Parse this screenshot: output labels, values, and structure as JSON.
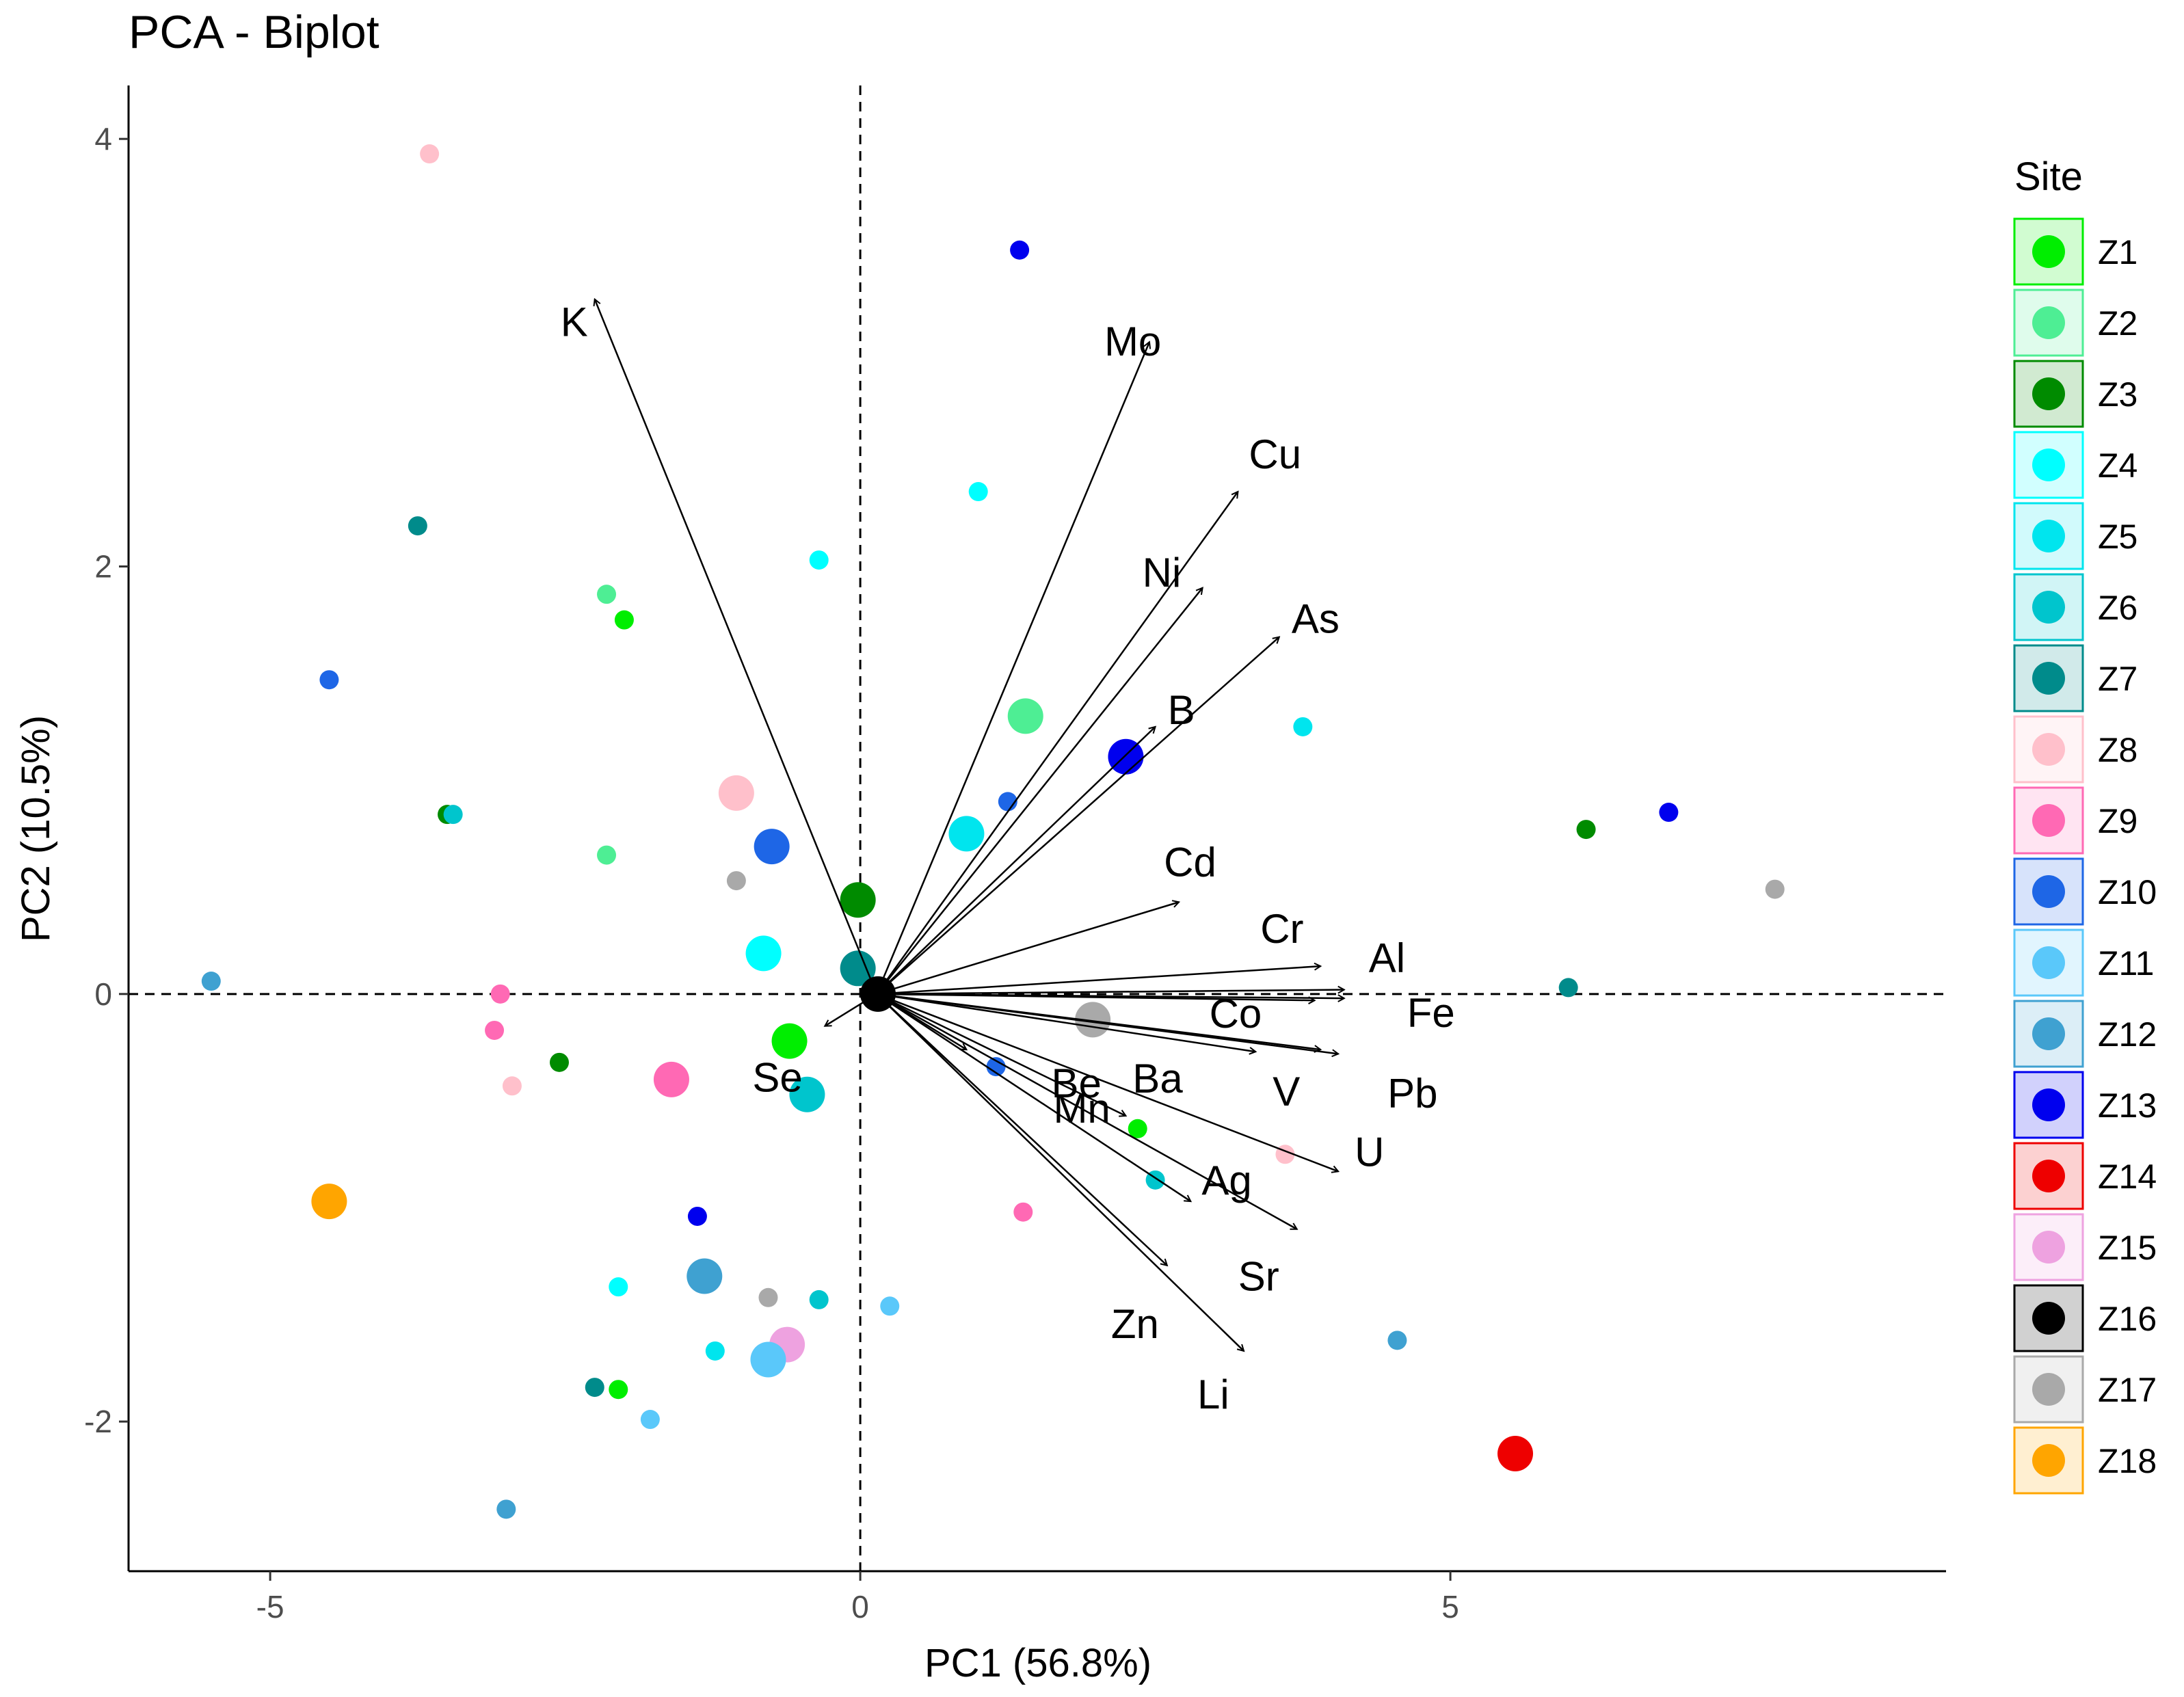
{
  "chart_data": {
    "type": "scatter",
    "subtype": "pca-biplot",
    "title": "PCA - Biplot",
    "xlabel": "PC1 (56.8%)",
    "ylabel": "PC2 (10.5%)",
    "xlim": [
      -6.2,
      9.2
    ],
    "ylim": [
      -2.7,
      4.25
    ],
    "xticks": [
      -5,
      0,
      5
    ],
    "yticks": [
      -2,
      0,
      2,
      4
    ],
    "xtick_labels": [
      "-5",
      "0",
      "5"
    ],
    "ytick_labels": [
      "-2",
      "0",
      "2",
      "4"
    ],
    "reference_lines": {
      "x": 0,
      "y": 0,
      "style": "dashed"
    },
    "legend": {
      "title": "Site",
      "placement": "right",
      "entries": [
        {
          "name": "Z1",
          "color": "#00ee00"
        },
        {
          "name": "Z2",
          "color": "#4eee94"
        },
        {
          "name": "Z3",
          "color": "#008b00"
        },
        {
          "name": "Z4",
          "color": "#00ffff"
        },
        {
          "name": "Z5",
          "color": "#00e5ee"
        },
        {
          "name": "Z6",
          "color": "#00c5cd"
        },
        {
          "name": "Z7",
          "color": "#008b8b"
        },
        {
          "name": "Z8",
          "color": "#ffc0cb"
        },
        {
          "name": "Z9",
          "color": "#ff69b4"
        },
        {
          "name": "Z10",
          "color": "#1e66e6"
        },
        {
          "name": "Z11",
          "color": "#5ac8fa"
        },
        {
          "name": "Z12",
          "color": "#3fa1d1"
        },
        {
          "name": "Z13",
          "color": "#0000ee"
        },
        {
          "name": "Z14",
          "color": "#ee0000"
        },
        {
          "name": "Z15",
          "color": "#eea2e0"
        },
        {
          "name": "Z16",
          "color": "#000000"
        },
        {
          "name": "Z17",
          "color": "#a9a9a9"
        },
        {
          "name": "Z18",
          "color": "#ffa500"
        }
      ]
    },
    "variables": [
      {
        "name": "K",
        "x": -2.25,
        "y": 3.25
      },
      {
        "name": "Mo",
        "x": 2.45,
        "y": 3.05
      },
      {
        "name": "Cu",
        "x": 3.2,
        "y": 2.35
      },
      {
        "name": "Ni",
        "x": 2.9,
        "y": 1.9
      },
      {
        "name": "As",
        "x": 3.55,
        "y": 1.67
      },
      {
        "name": "B",
        "x": 2.5,
        "y": 1.25
      },
      {
        "name": "Cd",
        "x": 2.7,
        "y": 0.43
      },
      {
        "name": "Cr",
        "x": 3.9,
        "y": 0.13
      },
      {
        "name": "Al",
        "x": 4.1,
        "y": 0.02
      },
      {
        "name": "Fe",
        "x": 4.1,
        "y": -0.02
      },
      {
        "name": "Co",
        "x": 3.85,
        "y": -0.03
      },
      {
        "name": "Pb",
        "x": 4.05,
        "y": -0.28
      },
      {
        "name": "V",
        "x": 3.9,
        "y": -0.26
      },
      {
        "name": "U",
        "x": 4.05,
        "y": -0.83
      },
      {
        "name": "Ba",
        "x": 3.35,
        "y": -0.27
      },
      {
        "name": "Be",
        "x": 0.9,
        "y": -0.26
      },
      {
        "name": "Mn",
        "x": 2.25,
        "y": -0.57
      },
      {
        "name": "Ag",
        "x": 2.8,
        "y": -0.97
      },
      {
        "name": "Sr",
        "x": 3.7,
        "y": -1.1
      },
      {
        "name": "Zn",
        "x": 2.6,
        "y": -1.27
      },
      {
        "name": "Li",
        "x": 3.25,
        "y": -1.67
      },
      {
        "name": "Se",
        "x": -0.3,
        "y": -0.15
      }
    ],
    "points": [
      {
        "site": "Z8",
        "x": -3.65,
        "y": 3.93,
        "size": "small"
      },
      {
        "site": "Z13",
        "x": 1.35,
        "y": 3.48,
        "size": "small"
      },
      {
        "site": "Z4",
        "x": 1.0,
        "y": 2.35,
        "size": "small"
      },
      {
        "site": "Z7",
        "x": -3.75,
        "y": 2.19,
        "size": "small"
      },
      {
        "site": "Z4",
        "x": -0.35,
        "y": 2.03,
        "size": "small"
      },
      {
        "site": "Z2",
        "x": -2.15,
        "y": 1.87,
        "size": "small"
      },
      {
        "site": "Z1",
        "x": -2.0,
        "y": 1.75,
        "size": "small"
      },
      {
        "site": "Z10",
        "x": -4.5,
        "y": 1.47,
        "size": "small"
      },
      {
        "site": "Z2",
        "x": 1.4,
        "y": 1.3,
        "size": "large"
      },
      {
        "site": "Z5",
        "x": 3.75,
        "y": 1.25,
        "size": "small"
      },
      {
        "site": "Z13",
        "x": 2.25,
        "y": 1.11,
        "size": "large"
      },
      {
        "site": "Z8",
        "x": -1.05,
        "y": 0.94,
        "size": "large"
      },
      {
        "site": "Z10",
        "x": 1.25,
        "y": 0.9,
        "size": "small"
      },
      {
        "site": "Z3",
        "x": -3.5,
        "y": 0.84,
        "size": "small"
      },
      {
        "site": "Z6",
        "x": -3.45,
        "y": 0.84,
        "size": "small"
      },
      {
        "site": "Z13",
        "x": 6.85,
        "y": 0.85,
        "size": "small"
      },
      {
        "site": "Z3",
        "x": 6.15,
        "y": 0.77,
        "size": "small"
      },
      {
        "site": "Z5",
        "x": 0.9,
        "y": 0.75,
        "size": "large"
      },
      {
        "site": "Z10",
        "x": -0.75,
        "y": 0.69,
        "size": "large"
      },
      {
        "site": "Z2",
        "x": -2.15,
        "y": 0.65,
        "size": "small"
      },
      {
        "site": "Z17",
        "x": -1.05,
        "y": 0.53,
        "size": "small"
      },
      {
        "site": "Z17",
        "x": 7.75,
        "y": 0.49,
        "size": "small"
      },
      {
        "site": "Z3",
        "x": -0.02,
        "y": 0.44,
        "size": "large"
      },
      {
        "site": "Z4",
        "x": -0.82,
        "y": 0.19,
        "size": "large"
      },
      {
        "site": "Z7",
        "x": -0.02,
        "y": 0.12,
        "size": "large"
      },
      {
        "site": "Z16",
        "x": 0.15,
        "y": 0.0,
        "size": "large"
      },
      {
        "site": "Z12",
        "x": -5.5,
        "y": 0.06,
        "size": "small"
      },
      {
        "site": "Z7",
        "x": 6.0,
        "y": 0.03,
        "size": "small"
      },
      {
        "site": "Z9",
        "x": -3.05,
        "y": 0.0,
        "size": "small"
      },
      {
        "site": "Z17",
        "x": 1.97,
        "y": -0.12,
        "size": "large"
      },
      {
        "site": "Z9",
        "x": -3.1,
        "y": -0.17,
        "size": "small"
      },
      {
        "site": "Z1",
        "x": -0.6,
        "y": -0.22,
        "size": "large"
      },
      {
        "site": "Z3",
        "x": -2.55,
        "y": -0.32,
        "size": "small"
      },
      {
        "site": "Z10",
        "x": 1.15,
        "y": -0.34,
        "size": "small"
      },
      {
        "site": "Z9",
        "x": -1.6,
        "y": -0.4,
        "size": "large"
      },
      {
        "site": "Z8",
        "x": -2.95,
        "y": -0.43,
        "size": "small"
      },
      {
        "site": "Z6",
        "x": -0.45,
        "y": -0.47,
        "size": "large"
      },
      {
        "site": "Z1",
        "x": 2.35,
        "y": -0.63,
        "size": "small"
      },
      {
        "site": "Z8",
        "x": 3.6,
        "y": -0.75,
        "size": "small"
      },
      {
        "site": "Z6",
        "x": 2.5,
        "y": -0.87,
        "size": "small"
      },
      {
        "site": "Z18",
        "x": -4.5,
        "y": -0.97,
        "size": "large"
      },
      {
        "site": "Z9",
        "x": 1.38,
        "y": -1.02,
        "size": "small"
      },
      {
        "site": "Z13",
        "x": -1.38,
        "y": -1.04,
        "size": "small"
      },
      {
        "site": "Z12",
        "x": -1.32,
        "y": -1.32,
        "size": "large"
      },
      {
        "site": "Z4",
        "x": -2.05,
        "y": -1.37,
        "size": "small"
      },
      {
        "site": "Z17",
        "x": -0.78,
        "y": -1.42,
        "size": "small"
      },
      {
        "site": "Z6",
        "x": -0.35,
        "y": -1.43,
        "size": "small"
      },
      {
        "site": "Z11",
        "x": 0.25,
        "y": -1.46,
        "size": "small"
      },
      {
        "site": "Z15",
        "x": -0.62,
        "y": -1.64,
        "size": "large"
      },
      {
        "site": "Z5",
        "x": -1.23,
        "y": -1.67,
        "size": "small"
      },
      {
        "site": "Z11",
        "x": -0.78,
        "y": -1.71,
        "size": "large"
      },
      {
        "site": "Z12",
        "x": 4.55,
        "y": -1.62,
        "size": "small"
      },
      {
        "site": "Z7",
        "x": -2.25,
        "y": -1.84,
        "size": "small"
      },
      {
        "site": "Z1",
        "x": -2.05,
        "y": -1.85,
        "size": "small"
      },
      {
        "site": "Z11",
        "x": -1.78,
        "y": -1.99,
        "size": "small"
      },
      {
        "site": "Z12",
        "x": -3.0,
        "y": -2.41,
        "size": "small"
      },
      {
        "site": "Z14",
        "x": 5.55,
        "y": -2.15,
        "size": "large"
      }
    ]
  }
}
